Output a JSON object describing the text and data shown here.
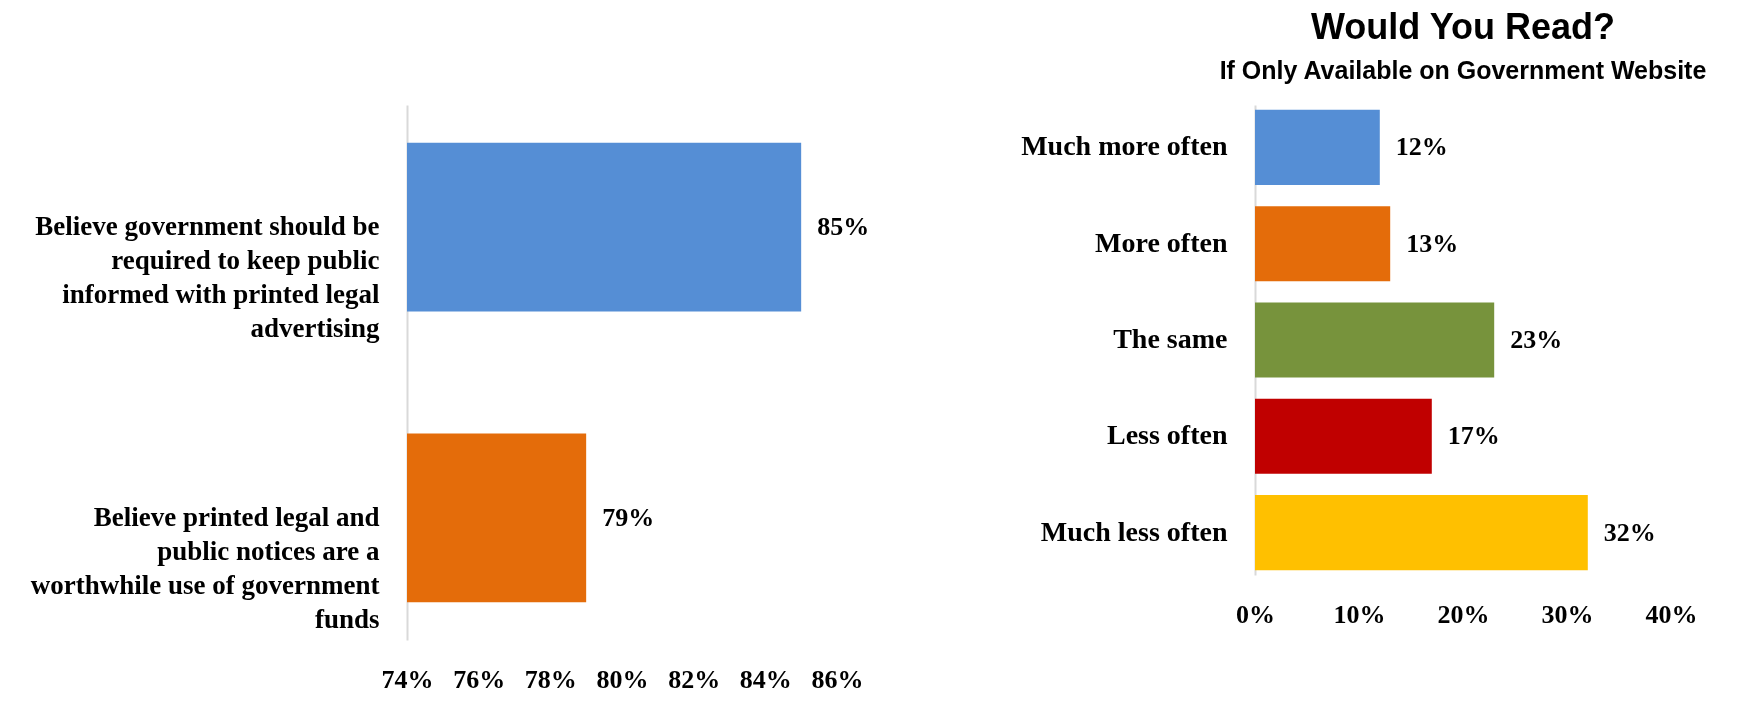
{
  "chart_data": [
    {
      "type": "bar",
      "orientation": "horizontal",
      "categories": [
        "Believe government should be required to keep public informed with printed legal advertising",
        "Believe printed legal and public notices are a worthwhile use of government funds"
      ],
      "values": [
        85,
        79
      ],
      "colors": [
        "#558ed5",
        "#e46c0a"
      ],
      "value_labels": [
        "85%",
        "79%"
      ],
      "xlim": [
        74,
        86
      ],
      "xticks": [
        {
          "value": 74,
          "label": "74%"
        },
        {
          "value": 76,
          "label": "76%"
        },
        {
          "value": 78,
          "label": "78%"
        },
        {
          "value": 80,
          "label": "80%"
        },
        {
          "value": 82,
          "label": "82%"
        },
        {
          "value": 84,
          "label": "84%"
        },
        {
          "value": 86,
          "label": "86%"
        }
      ],
      "grid": false
    },
    {
      "type": "bar",
      "orientation": "horizontal",
      "title": "Would You Read?",
      "subtitle": "If Only Available on Government Website",
      "categories": [
        "Much more often",
        "More often",
        "The same",
        "Less often",
        "Much less often"
      ],
      "values": [
        12,
        13,
        23,
        17,
        32
      ],
      "colors": [
        "#558ed5",
        "#e46c0a",
        "#77933c",
        "#c00000",
        "#ffc000"
      ],
      "value_labels": [
        "12%",
        "13%",
        "23%",
        "17%",
        "32%"
      ],
      "xlim": [
        0,
        40
      ],
      "xticks": [
        {
          "value": 0,
          "label": "0%"
        },
        {
          "value": 10,
          "label": "10%"
        },
        {
          "value": 20,
          "label": "20%"
        },
        {
          "value": 30,
          "label": "30%"
        },
        {
          "value": 40,
          "label": "40%"
        }
      ],
      "grid": false
    }
  ]
}
